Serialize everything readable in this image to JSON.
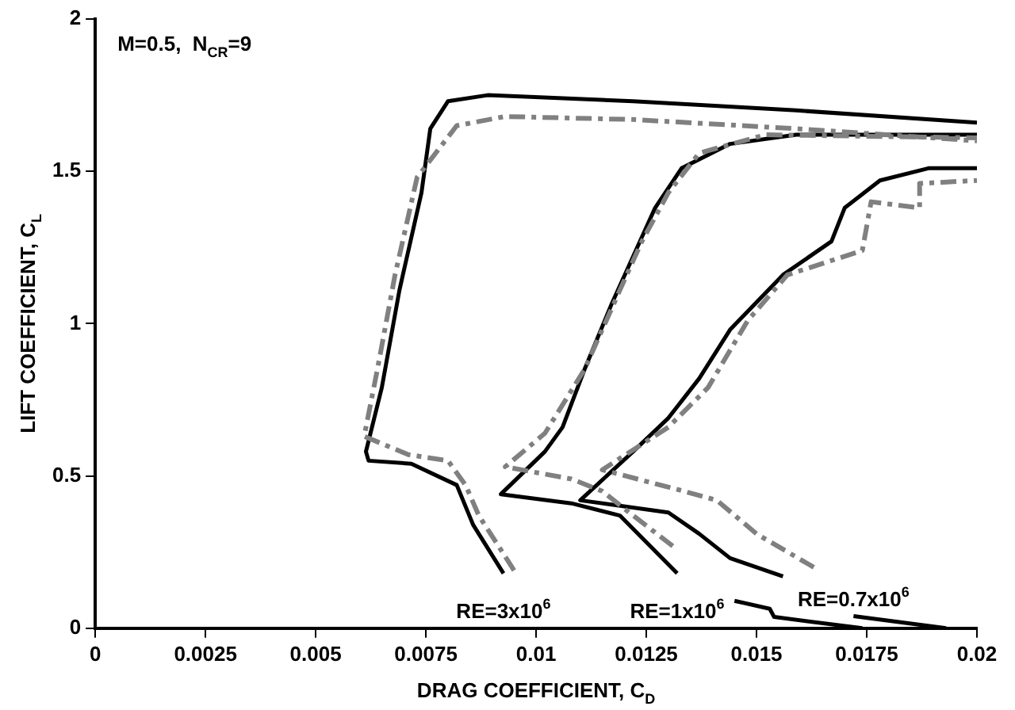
{
  "chart_data": {
    "type": "line",
    "xlabel": "DRAG COEFFICIENT, C$_{D}$",
    "ylabel": "LIFT COEFFICIENT, C$_{L}$",
    "xlim": [
      0,
      0.02
    ],
    "xticks": [
      0,
      0.0025,
      0.005,
      0.0075,
      0.01,
      0.0125,
      0.015,
      0.0175,
      0.02
    ],
    "ylim": [
      0,
      2
    ],
    "yticks": [
      0,
      0.5,
      1,
      1.5,
      2
    ],
    "grid": false,
    "legend": false,
    "marker": "none",
    "annotations": [
      "M=0.5,  N$_{CR}$=9",
      {
        "text": "RE=3x10$^{6}$",
        "x": 0.00926,
        "y": 0.18
      },
      {
        "text": "RE=1x10$^{6}$",
        "x": 0.0132,
        "y": 0.18
      },
      {
        "text": "RE=0.7x10$^{6}$",
        "x": 0.0172,
        "y": 0.04
      }
    ],
    "series": [
      {
        "color": "#808080",
        "line_style": "dashed",
        "x": [
          0.0095,
          0.0087,
          0.0084,
          0.008,
          0.0071,
          0.0061,
          0.0064,
          0.0068,
          0.0073,
          0.0082,
          0.0093,
          0.0122,
          0.0159,
          0.02
        ],
        "values": [
          0.19,
          0.37,
          0.47,
          0.55,
          0.57,
          0.63,
          0.85,
          1.16,
          1.48,
          1.65,
          1.68,
          1.67,
          1.64,
          1.6
        ]
      },
      {
        "color": "#808080",
        "line_style": "dashed",
        "x": [
          0.0131,
          0.0122,
          0.0115,
          0.0108,
          0.0093,
          0.0102,
          0.0111,
          0.0119,
          0.0124,
          0.013,
          0.0137,
          0.0152,
          0.02
        ],
        "values": [
          0.27,
          0.37,
          0.45,
          0.49,
          0.53,
          0.64,
          0.85,
          1.11,
          1.27,
          1.43,
          1.56,
          1.62,
          1.61
        ]
      },
      {
        "color": "#808080",
        "line_style": "dashed",
        "x": [
          0.0163,
          0.015,
          0.0141,
          0.01335,
          0.0115,
          0.013,
          0.0139,
          0.0148,
          0.0157,
          0.0174,
          0.0176,
          0.0187,
          0.0187,
          0.02
        ],
        "values": [
          0.2,
          0.31,
          0.42,
          0.45,
          0.52,
          0.66,
          0.79,
          1.01,
          1.16,
          1.24,
          1.4,
          1.38,
          1.46,
          1.47
        ]
      },
      {
        "color": "#000000",
        "line_style": "solid",
        "x": [
          0.00926,
          0.00857,
          0.0082,
          0.00717,
          0.0062,
          0.00614,
          0.0065,
          0.0069,
          0.0074,
          0.0076,
          0.008,
          0.0089,
          0.0122,
          0.0159,
          0.02
        ],
        "values": [
          0.18,
          0.34,
          0.47,
          0.54,
          0.55,
          0.58,
          0.79,
          1.11,
          1.43,
          1.64,
          1.73,
          1.75,
          1.73,
          1.7,
          1.66
        ]
      },
      {
        "color": "#000000",
        "line_style": "solid",
        "x": [
          0.0174,
          0.0154,
          0.0153,
          0.0145,
          null,
          0.0132,
          0.0119,
          0.0108,
          0.0092,
          0.0102,
          0.0106,
          0.0111,
          0.0117,
          0.0122,
          0.0127,
          0.0133,
          0.0144,
          0.0159,
          0.02
        ],
        "values": [
          0.0,
          0.037,
          0.064,
          0.09,
          null,
          0.18,
          0.37,
          0.41,
          0.44,
          0.58,
          0.66,
          0.85,
          1.06,
          1.22,
          1.38,
          1.51,
          1.59,
          1.62,
          1.62
        ]
      },
      {
        "color": "#000000",
        "line_style": "solid",
        "x": [
          0.0193,
          0.0172,
          null,
          0.0156,
          0.0144,
          0.0137,
          0.013,
          0.011,
          0.0122,
          0.013,
          0.0137,
          0.0144,
          0.0156,
          0.0167,
          0.017,
          0.0178,
          0.0189,
          0.02
        ],
        "values": [
          0.0,
          0.04,
          null,
          0.17,
          0.23,
          0.31,
          0.38,
          0.42,
          0.58,
          0.69,
          0.82,
          0.98,
          1.16,
          1.27,
          1.38,
          1.47,
          1.51,
          1.51
        ]
      }
    ]
  }
}
